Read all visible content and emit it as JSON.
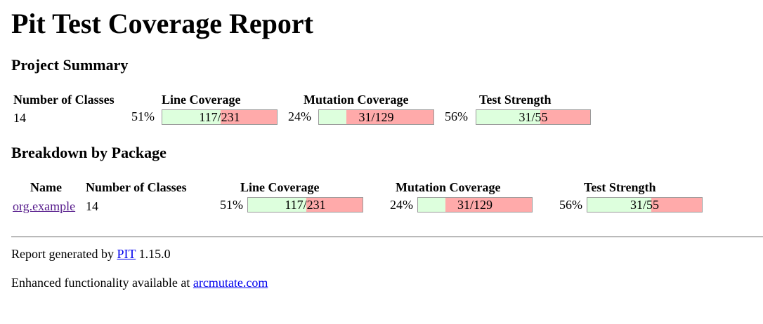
{
  "title": "Pit Test Coverage Report",
  "project_summary": {
    "heading": "Project Summary",
    "headers": {
      "classes": "Number of Classes",
      "line": "Line Coverage",
      "mutation": "Mutation Coverage",
      "strength": "Test Strength"
    },
    "classes": "14",
    "line": {
      "percent": "51%",
      "label": "117/231",
      "covered_fraction": 0.51
    },
    "mutation": {
      "percent": "24%",
      "label": "31/129",
      "covered_fraction": 0.24
    },
    "strength": {
      "percent": "56%",
      "label": "31/55",
      "covered_fraction": 0.56
    }
  },
  "breakdown": {
    "heading": "Breakdown by Package",
    "headers": {
      "name": "Name",
      "classes": "Number of Classes",
      "line": "Line Coverage",
      "mutation": "Mutation Coverage",
      "strength": "Test Strength"
    },
    "rows": [
      {
        "name": "org.example",
        "classes": "14",
        "line": {
          "percent": "51%",
          "label": "117/231",
          "covered_fraction": 0.51
        },
        "mutation": {
          "percent": "24%",
          "label": "31/129",
          "covered_fraction": 0.24
        },
        "strength": {
          "percent": "56%",
          "label": "31/55",
          "covered_fraction": 0.56
        }
      }
    ]
  },
  "footer": {
    "generated_prefix": "Report generated by",
    "pit_link": "PIT",
    "version": "1.15.0",
    "enhanced_prefix": "Enhanced functionality available at",
    "arcmutate_link": "arcmutate.com"
  },
  "colors": {
    "covered": "#ddffdd",
    "uncovered": "#ffaaaa",
    "link": "#0000ee",
    "visited_link": "#551a8b"
  }
}
